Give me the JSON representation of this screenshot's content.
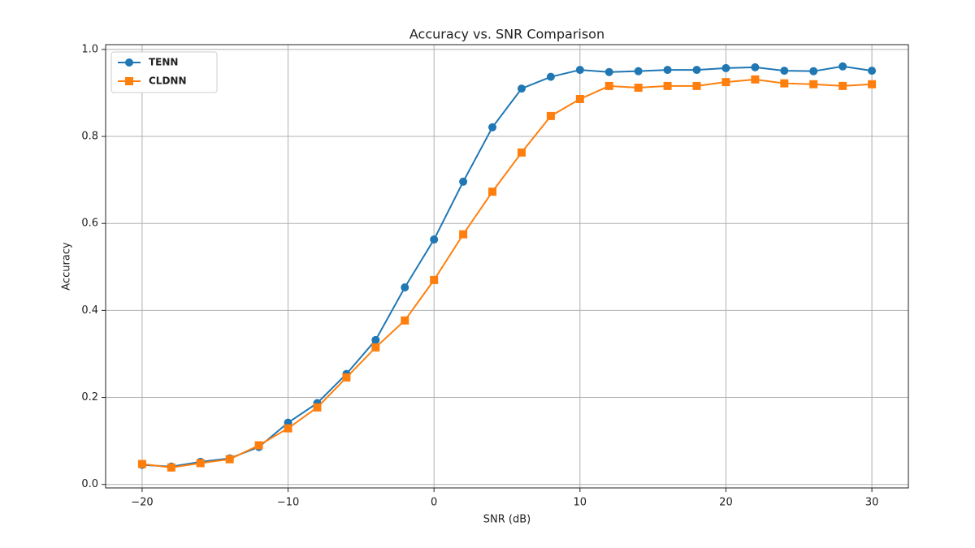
{
  "chart_data": {
    "type": "line",
    "title": "Accuracy vs. SNR Comparison",
    "x_label": "SNR (dB)",
    "y_label": "Accuracy",
    "x": [
      -20,
      -18,
      -16,
      -14,
      -12,
      -10,
      -8,
      -6,
      -4,
      -2,
      0,
      2,
      4,
      6,
      8,
      10,
      12,
      14,
      16,
      18,
      20,
      22,
      24,
      26,
      28,
      30
    ],
    "series": [
      {
        "name": "TENN",
        "color": "#1f77b4",
        "marker": "circle",
        "values": [
          0.045,
          0.041,
          0.052,
          0.06,
          0.086,
          0.142,
          0.187,
          0.254,
          0.332,
          0.453,
          0.563,
          0.696,
          0.821,
          0.91,
          0.937,
          0.953,
          0.948,
          0.95,
          0.953,
          0.953,
          0.957,
          0.959,
          0.951,
          0.95,
          0.961,
          0.951
        ]
      },
      {
        "name": "CLDNN",
        "color": "#ff7f0e",
        "marker": "square",
        "values": [
          0.047,
          0.039,
          0.049,
          0.058,
          0.09,
          0.129,
          0.177,
          0.246,
          0.315,
          0.377,
          0.47,
          0.575,
          0.673,
          0.763,
          0.847,
          0.886,
          0.916,
          0.912,
          0.916,
          0.916,
          0.925,
          0.931,
          0.922,
          0.92,
          0.916,
          0.92
        ]
      }
    ],
    "xlim": [
      -22.5,
      32.5
    ],
    "ylim": [
      -0.008,
      1.011
    ],
    "xticks": [
      {
        "value": -20,
        "label": "−20"
      },
      {
        "value": -10,
        "label": "−10"
      },
      0,
      10,
      20,
      30
    ],
    "yticks": [
      {
        "value": 0,
        "label": "0.0"
      },
      0.2,
      0.4,
      0.6,
      0.8,
      {
        "value": 1,
        "label": "1.0"
      }
    ],
    "grid": true,
    "legend": "upper left"
  }
}
